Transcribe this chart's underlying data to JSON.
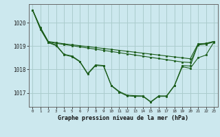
{
  "title": "Graphe pression niveau de la mer (hPa)",
  "background_color": "#cce8ee",
  "grid_color": "#aacccc",
  "line_color": "#1a5c1a",
  "ylim": [
    1016.4,
    1020.8
  ],
  "yticks": [
    1017,
    1018,
    1019,
    1020
  ],
  "line1": [
    1020.55,
    1019.8,
    1019.2,
    1019.15,
    1019.1,
    1019.06,
    1019.02,
    1018.98,
    1018.94,
    1018.9,
    1018.86,
    1018.82,
    1018.78,
    1018.74,
    1018.7,
    1018.66,
    1018.62,
    1018.58,
    1018.54,
    1018.5,
    1018.46,
    1019.1,
    1019.12,
    1019.2
  ],
  "line2": [
    1020.55,
    1019.78,
    1019.18,
    1019.12,
    1019.07,
    1019.02,
    1018.97,
    1018.92,
    1018.87,
    1018.82,
    1018.77,
    1018.72,
    1018.67,
    1018.62,
    1018.57,
    1018.52,
    1018.47,
    1018.42,
    1018.37,
    1018.32,
    1018.3,
    1019.05,
    1019.08,
    1019.18
  ],
  "line3": [
    1020.55,
    1019.75,
    1019.17,
    1019.05,
    1018.65,
    1018.58,
    1018.35,
    1017.83,
    1018.2,
    1018.17,
    1017.32,
    1017.06,
    1016.9,
    1016.88,
    1016.87,
    1016.62,
    1016.87,
    1016.87,
    1017.32,
    1018.17,
    1018.15,
    1019.08,
    1019.12,
    1019.2
  ],
  "line4": [
    1020.55,
    1019.72,
    1019.15,
    1019.02,
    1018.63,
    1018.55,
    1018.33,
    1017.8,
    1018.17,
    1018.15,
    1017.3,
    1017.03,
    1016.87,
    1016.85,
    1016.85,
    1016.6,
    1016.85,
    1016.85,
    1017.3,
    1018.12,
    1018.05,
    1018.5,
    1018.62,
    1019.17
  ]
}
